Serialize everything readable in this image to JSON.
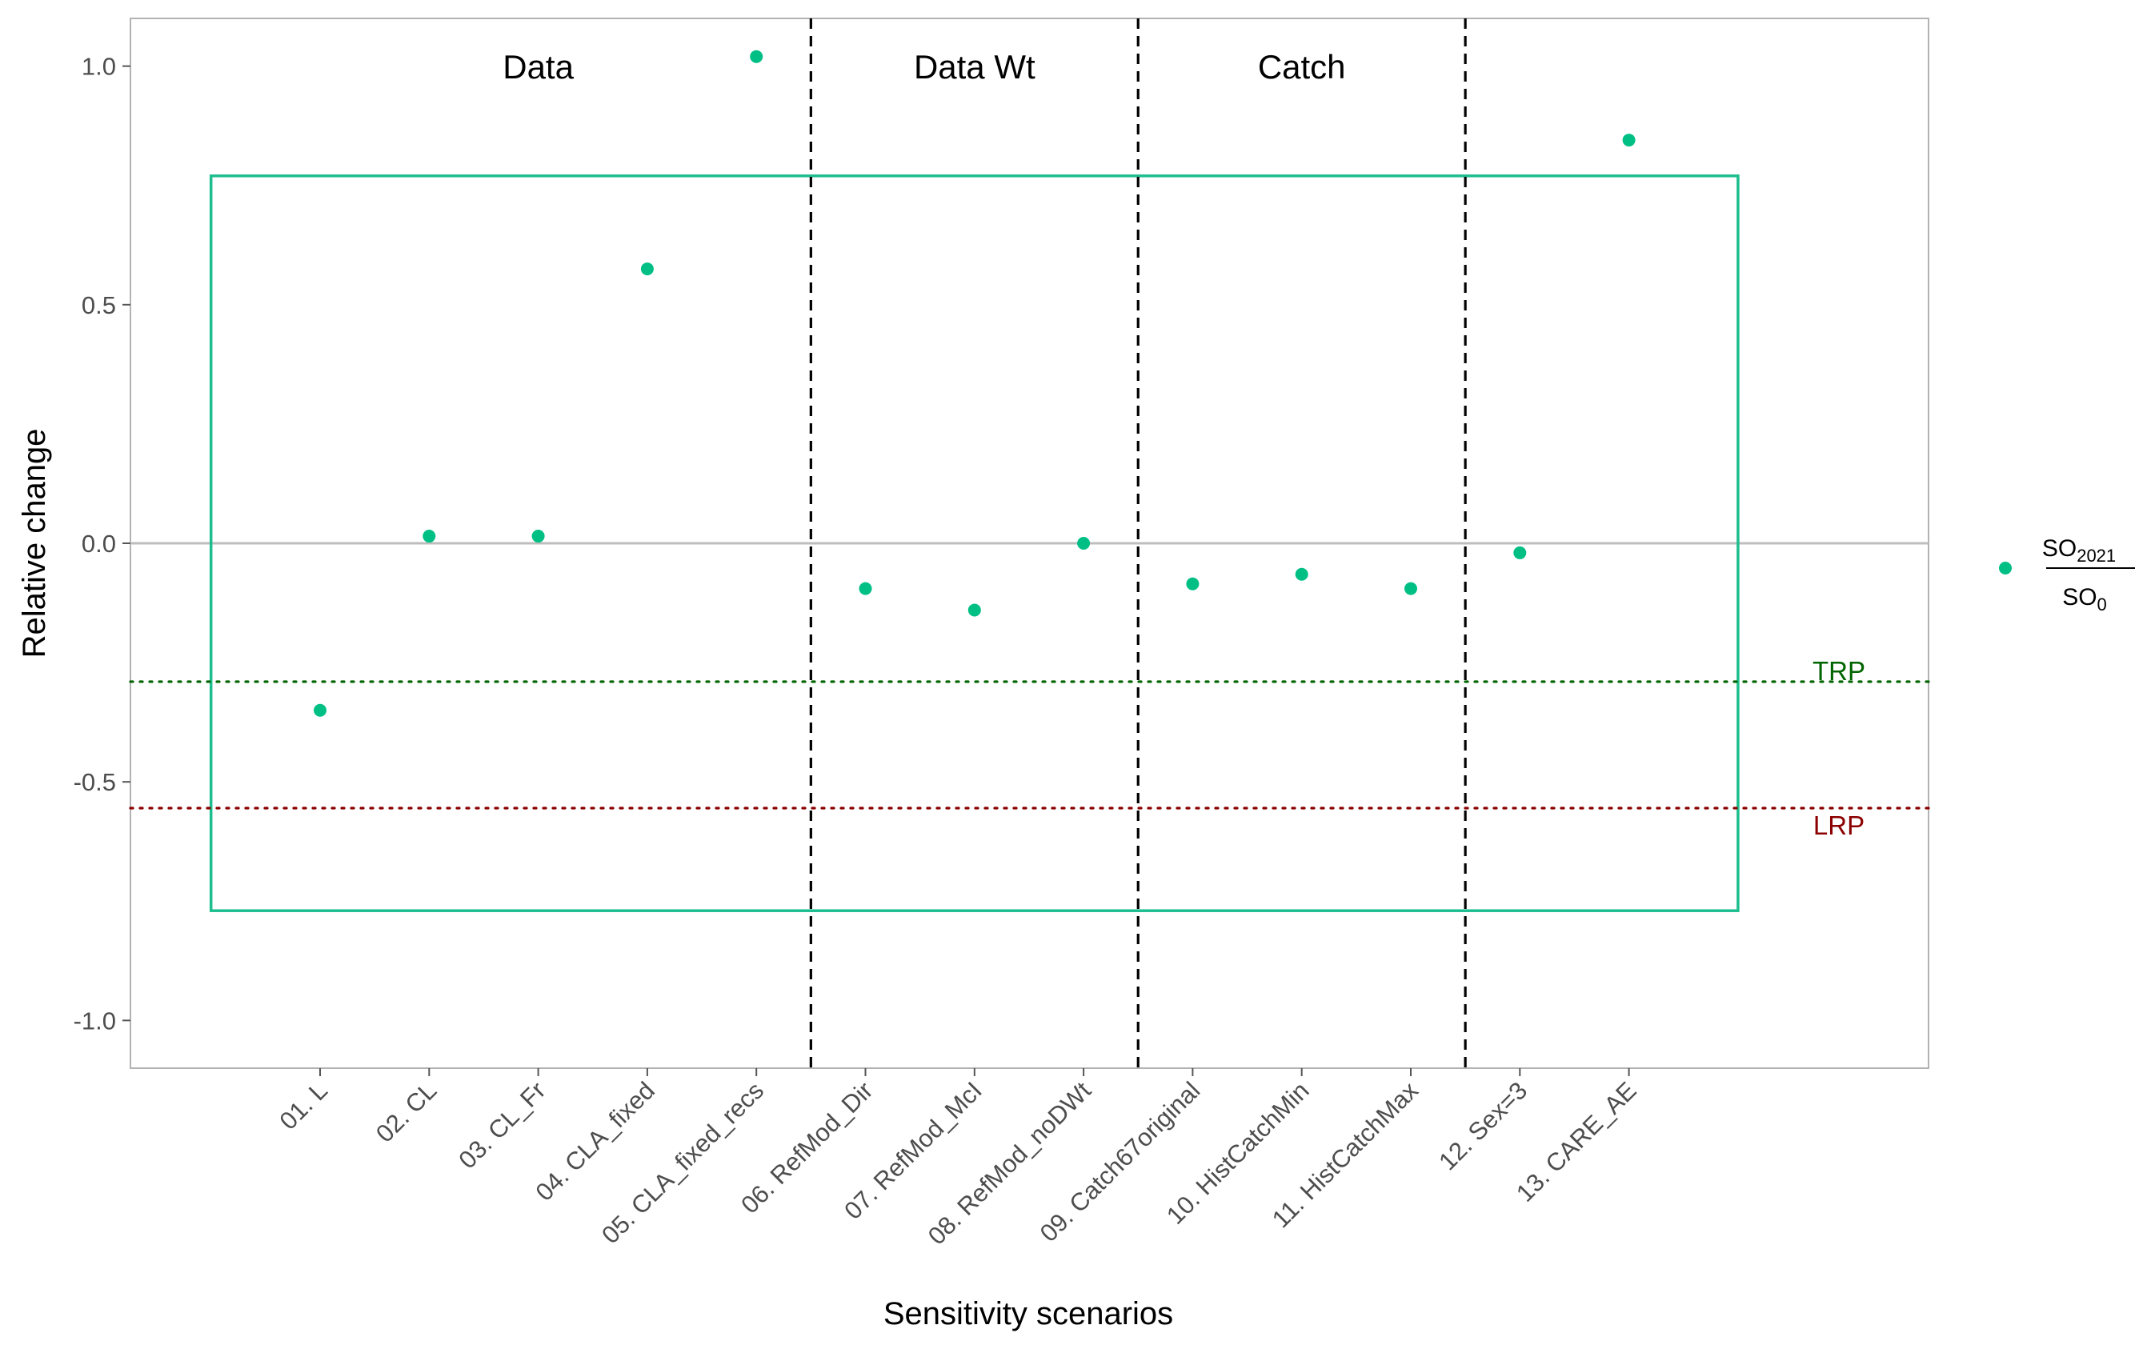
{
  "chart_data": {
    "type": "scatter",
    "xlabel": "Sensitivity scenarios",
    "ylabel": "Relative change",
    "ylim": [
      -1.1,
      1.1
    ],
    "yticks": [
      1.0,
      0.5,
      0.0,
      -0.5,
      -1.0
    ],
    "ytick_labels": [
      "1.0",
      "0.5",
      "0.0",
      "-0.5",
      "-1.0"
    ],
    "grid": false,
    "legend_position": "right",
    "categories": [
      "01. L",
      "02. CL",
      "03. CL_Fr",
      "04. CLA_fixed",
      "05. CLA_fixed_recs",
      "06. RefMod_Dir",
      "07. RefMod_McI",
      "08. RefMod_noDWt",
      "09. Catch67original",
      "10. HistCatchMin",
      "11. HistCatchMax",
      "12. Sex=3",
      "13. CARE_AE"
    ],
    "series": [
      {
        "values": [
          -0.35,
          0.015,
          0.015,
          0.575,
          1.02,
          -0.095,
          -0.14,
          0.0,
          -0.085,
          -0.065,
          -0.095,
          -0.02,
          0.845
        ],
        "color": "#00BF85"
      }
    ],
    "legend": {
      "numerator_base": "SO",
      "numerator_sub": "2021",
      "denominator_base": "SO",
      "denominator_sub": "0"
    },
    "groups": [
      {
        "label": "Data",
        "center": 3
      },
      {
        "label": "Data Wt",
        "center": 7
      },
      {
        "label": "Catch",
        "center": 10
      }
    ],
    "group_dividers": [
      5.5,
      8.5,
      11.5
    ],
    "reference_lines": [
      {
        "label": "TRP",
        "y": -0.29,
        "color": "#006400"
      },
      {
        "label": "LRP",
        "y": -0.555,
        "color": "#8B0000"
      }
    ],
    "zero_line": 0,
    "bounds_box": {
      "x_from": 0,
      "x_to": 14,
      "y_from": -0.77,
      "y_to": 0.77,
      "color": "#1DBE8E"
    }
  }
}
